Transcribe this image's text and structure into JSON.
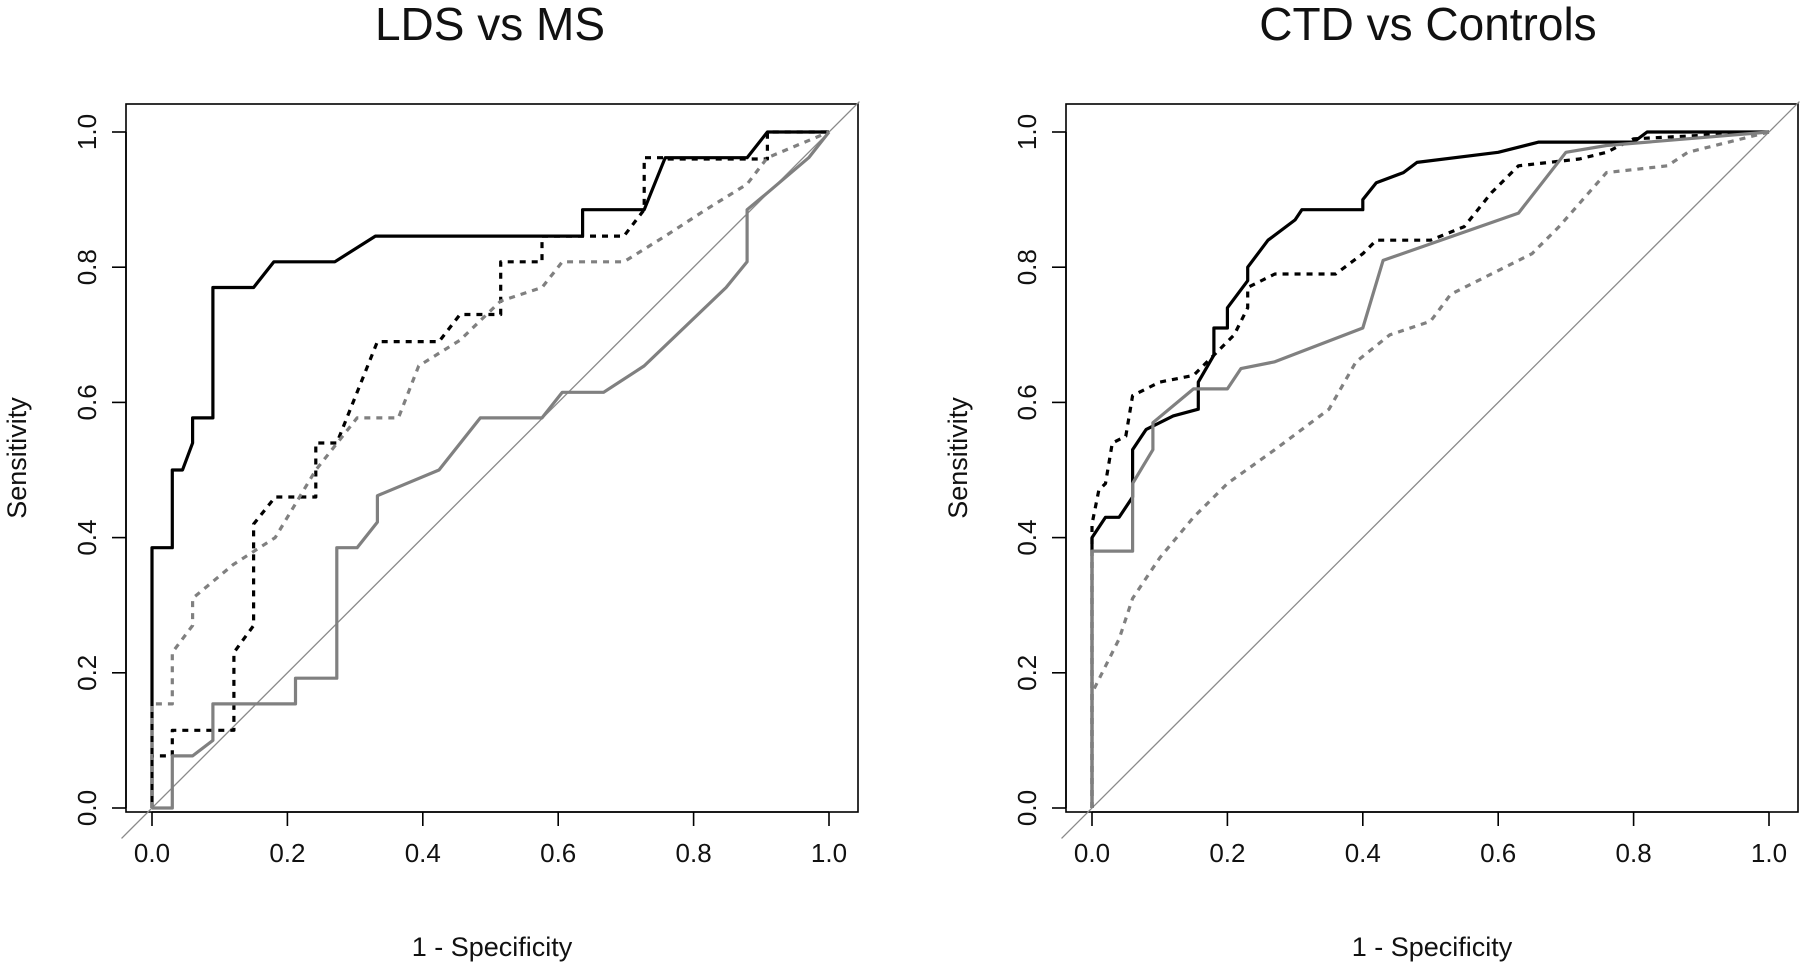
{
  "chart_data": [
    {
      "type": "line",
      "title": "LDS vs MS",
      "xlabel": "1 - Specificity",
      "ylabel": "Sensitivity",
      "xlim": [
        0,
        1
      ],
      "ylim": [
        0,
        1
      ],
      "xticks": [
        "0.0",
        "0.2",
        "0.4",
        "0.6",
        "0.8",
        "1.0"
      ],
      "yticks": [
        "0.0",
        "0.2",
        "0.4",
        "0.6",
        "0.8",
        "1.0"
      ],
      "reference_line": "diagonal",
      "grid": false,
      "series": [
        {
          "style": "solid",
          "color": "#000000",
          "points": [
            [
              0,
              0
            ],
            [
              0,
              0.385
            ],
            [
              0.03,
              0.385
            ],
            [
              0.03,
              0.5
            ],
            [
              0.045,
              0.5
            ],
            [
              0.06,
              0.54
            ],
            [
              0.06,
              0.577
            ],
            [
              0.09,
              0.577
            ],
            [
              0.09,
              0.77
            ],
            [
              0.15,
              0.77
            ],
            [
              0.18,
              0.808
            ],
            [
              0.27,
              0.808
            ],
            [
              0.33,
              0.846
            ],
            [
              0.636,
              0.846
            ],
            [
              0.636,
              0.885
            ],
            [
              0.727,
              0.885
            ],
            [
              0.758,
              0.962
            ],
            [
              0.879,
              0.962
            ],
            [
              0.909,
              1.0
            ],
            [
              1.0,
              1.0
            ]
          ]
        },
        {
          "style": "dashed",
          "color": "#000000",
          "points": [
            [
              0,
              0
            ],
            [
              0,
              0.077
            ],
            [
              0.03,
              0.077
            ],
            [
              0.03,
              0.115
            ],
            [
              0.121,
              0.115
            ],
            [
              0.121,
              0.23
            ],
            [
              0.15,
              0.27
            ],
            [
              0.15,
              0.42
            ],
            [
              0.182,
              0.46
            ],
            [
              0.242,
              0.46
            ],
            [
              0.242,
              0.54
            ],
            [
              0.273,
              0.54
            ],
            [
              0.333,
              0.69
            ],
            [
              0.424,
              0.69
            ],
            [
              0.455,
              0.73
            ],
            [
              0.515,
              0.73
            ],
            [
              0.515,
              0.808
            ],
            [
              0.576,
              0.808
            ],
            [
              0.576,
              0.846
            ],
            [
              0.697,
              0.846
            ],
            [
              0.727,
              0.885
            ],
            [
              0.727,
              0.962
            ],
            [
              0.758,
              0.962
            ],
            [
              0.758,
              0.96
            ],
            [
              0.909,
              0.96
            ],
            [
              0.909,
              1.0
            ],
            [
              1.0,
              1.0
            ]
          ]
        },
        {
          "style": "dashed",
          "color": "#808080",
          "points": [
            [
              0,
              0
            ],
            [
              0,
              0.154
            ],
            [
              0.03,
              0.154
            ],
            [
              0.03,
              0.23
            ],
            [
              0.06,
              0.27
            ],
            [
              0.06,
              0.31
            ],
            [
              0.12,
              0.36
            ],
            [
              0.182,
              0.4
            ],
            [
              0.242,
              0.5
            ],
            [
              0.303,
              0.577
            ],
            [
              0.364,
              0.577
            ],
            [
              0.394,
              0.654
            ],
            [
              0.455,
              0.692
            ],
            [
              0.515,
              0.75
            ],
            [
              0.576,
              0.77
            ],
            [
              0.606,
              0.808
            ],
            [
              0.697,
              0.808
            ],
            [
              0.758,
              0.846
            ],
            [
              0.818,
              0.885
            ],
            [
              0.879,
              0.923
            ],
            [
              0.909,
              0.962
            ],
            [
              1.0,
              1.0
            ]
          ]
        },
        {
          "style": "solid",
          "color": "#808080",
          "points": [
            [
              0,
              0
            ],
            [
              0.03,
              0
            ],
            [
              0.03,
              0.077
            ],
            [
              0.06,
              0.077
            ],
            [
              0.09,
              0.1
            ],
            [
              0.09,
              0.154
            ],
            [
              0.212,
              0.154
            ],
            [
              0.212,
              0.192
            ],
            [
              0.273,
              0.192
            ],
            [
              0.273,
              0.385
            ],
            [
              0.303,
              0.385
            ],
            [
              0.333,
              0.423
            ],
            [
              0.333,
              0.462
            ],
            [
              0.424,
              0.5
            ],
            [
              0.485,
              0.577
            ],
            [
              0.576,
              0.577
            ],
            [
              0.606,
              0.615
            ],
            [
              0.667,
              0.615
            ],
            [
              0.727,
              0.654
            ],
            [
              0.848,
              0.77
            ],
            [
              0.879,
              0.808
            ],
            [
              0.879,
              0.885
            ],
            [
              0.909,
              0.91
            ],
            [
              0.97,
              0.962
            ],
            [
              1.0,
              1.0
            ]
          ]
        }
      ]
    },
    {
      "type": "line",
      "title": "CTD vs Controls",
      "xlabel": "1 - Specificity",
      "ylabel": "Sensitivity",
      "xlim": [
        0,
        1
      ],
      "ylim": [
        0,
        1
      ],
      "xticks": [
        "0.0",
        "0.2",
        "0.4",
        "0.6",
        "0.8",
        "1.0"
      ],
      "yticks": [
        "0.0",
        "0.2",
        "0.4",
        "0.6",
        "0.8",
        "1.0"
      ],
      "reference_line": "diagonal",
      "grid": false,
      "series": [
        {
          "style": "solid",
          "color": "#000000",
          "points": [
            [
              0,
              0
            ],
            [
              0,
              0.4
            ],
            [
              0.02,
              0.43
            ],
            [
              0.04,
              0.43
            ],
            [
              0.06,
              0.46
            ],
            [
              0.06,
              0.53
            ],
            [
              0.08,
              0.56
            ],
            [
              0.12,
              0.58
            ],
            [
              0.157,
              0.59
            ],
            [
              0.157,
              0.63
            ],
            [
              0.18,
              0.67
            ],
            [
              0.18,
              0.71
            ],
            [
              0.2,
              0.71
            ],
            [
              0.2,
              0.74
            ],
            [
              0.23,
              0.78
            ],
            [
              0.23,
              0.8
            ],
            [
              0.26,
              0.84
            ],
            [
              0.3,
              0.87
            ],
            [
              0.31,
              0.885
            ],
            [
              0.4,
              0.885
            ],
            [
              0.4,
              0.9
            ],
            [
              0.42,
              0.925
            ],
            [
              0.46,
              0.94
            ],
            [
              0.48,
              0.955
            ],
            [
              0.6,
              0.97
            ],
            [
              0.66,
              0.985
            ],
            [
              0.8,
              0.985
            ],
            [
              0.82,
              1.0
            ],
            [
              1.0,
              1.0
            ]
          ]
        },
        {
          "style": "dashed",
          "color": "#000000",
          "points": [
            [
              0,
              0.0
            ],
            [
              0,
              0.42
            ],
            [
              0.01,
              0.47
            ],
            [
              0.02,
              0.48
            ],
            [
              0.03,
              0.54
            ],
            [
              0.05,
              0.55
            ],
            [
              0.06,
              0.61
            ],
            [
              0.1,
              0.63
            ],
            [
              0.15,
              0.64
            ],
            [
              0.18,
              0.67
            ],
            [
              0.21,
              0.7
            ],
            [
              0.23,
              0.74
            ],
            [
              0.23,
              0.77
            ],
            [
              0.27,
              0.79
            ],
            [
              0.36,
              0.79
            ],
            [
              0.4,
              0.82
            ],
            [
              0.42,
              0.84
            ],
            [
              0.5,
              0.84
            ],
            [
              0.55,
              0.86
            ],
            [
              0.59,
              0.91
            ],
            [
              0.63,
              0.95
            ],
            [
              0.72,
              0.96
            ],
            [
              0.76,
              0.97
            ],
            [
              0.8,
              0.99
            ],
            [
              1.0,
              1.0
            ]
          ]
        },
        {
          "style": "solid",
          "color": "#808080",
          "points": [
            [
              0,
              0.0
            ],
            [
              0,
              0.38
            ],
            [
              0.06,
              0.38
            ],
            [
              0.06,
              0.48
            ],
            [
              0.09,
              0.53
            ],
            [
              0.09,
              0.57
            ],
            [
              0.15,
              0.62
            ],
            [
              0.2,
              0.62
            ],
            [
              0.22,
              0.65
            ],
            [
              0.27,
              0.66
            ],
            [
              0.4,
              0.71
            ],
            [
              0.43,
              0.81
            ],
            [
              0.63,
              0.88
            ],
            [
              0.7,
              0.97
            ],
            [
              0.76,
              0.98
            ],
            [
              1.0,
              1.0
            ]
          ]
        },
        {
          "style": "dashed",
          "color": "#808080",
          "points": [
            [
              0,
              0.0
            ],
            [
              0,
              0.17
            ],
            [
              0.04,
              0.25
            ],
            [
              0.06,
              0.31
            ],
            [
              0.1,
              0.37
            ],
            [
              0.15,
              0.43
            ],
            [
              0.2,
              0.48
            ],
            [
              0.27,
              0.53
            ],
            [
              0.35,
              0.59
            ],
            [
              0.39,
              0.66
            ],
            [
              0.44,
              0.7
            ],
            [
              0.5,
              0.72
            ],
            [
              0.53,
              0.76
            ],
            [
              0.57,
              0.78
            ],
            [
              0.65,
              0.82
            ],
            [
              0.69,
              0.86
            ],
            [
              0.76,
              0.94
            ],
            [
              0.85,
              0.95
            ],
            [
              0.88,
              0.97
            ],
            [
              1.0,
              1.0
            ]
          ]
        }
      ]
    }
  ]
}
